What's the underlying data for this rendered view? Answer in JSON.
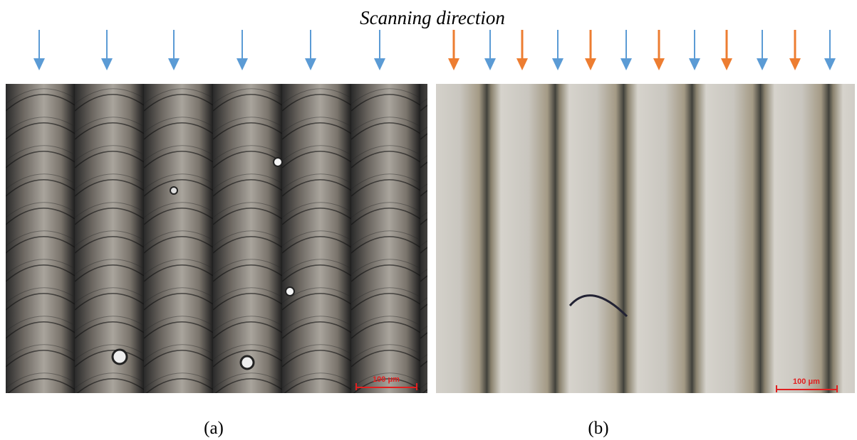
{
  "header": {
    "title": "Scanning direction"
  },
  "panels": [
    {
      "label": "(a)",
      "scale_bar": "100 μm"
    },
    {
      "label": "(b)",
      "scale_bar": "100 μm"
    }
  ]
}
